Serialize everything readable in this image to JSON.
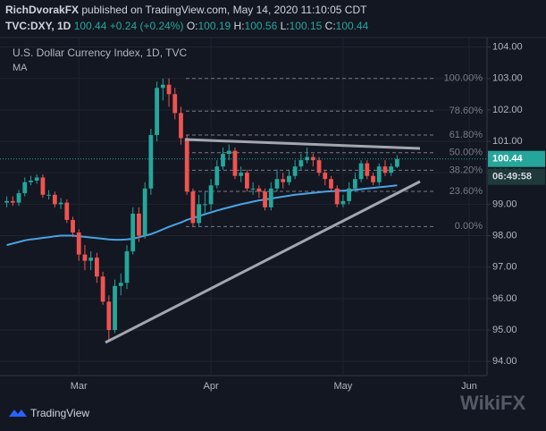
{
  "header": {
    "publisher": "RichDvorakFX",
    "published_text": "published on TradingView.com, May 14, 2020 11:10:05 CDT",
    "symbol": "TVC:DXY, 1D",
    "last": "100.44",
    "change": "+0.24 (+0.24%)",
    "ohlc": [
      {
        "key": "O:",
        "value": "100.19"
      },
      {
        "key": "H:",
        "value": "100.56"
      },
      {
        "key": "L:",
        "value": "100.15"
      },
      {
        "key": "C:",
        "value": "100.44"
      }
    ]
  },
  "chart_data": {
    "type": "candlestick",
    "title": "U.S. Dollar Currency Index, 1D, TVC",
    "categories": [
      null,
      null,
      null,
      null,
      null,
      null,
      null,
      null,
      null,
      null,
      null,
      null,
      "Mar",
      null,
      null,
      null,
      null,
      null,
      null,
      null,
      null,
      null,
      null,
      null,
      null,
      null,
      null,
      null,
      null,
      null,
      null,
      null,
      null,
      null,
      "Apr",
      null,
      null,
      null,
      null,
      null,
      null,
      null,
      null,
      null,
      null,
      null,
      null,
      null,
      null,
      null,
      null,
      null,
      null,
      null,
      null,
      null,
      "May",
      null,
      null,
      null,
      null,
      null,
      null,
      null,
      null,
      null,
      null,
      null,
      null,
      null,
      null,
      null,
      null,
      null,
      null,
      null,
      null,
      "Jun"
    ],
    "open": [
      99.05,
      99.1,
      99.05,
      99.35,
      99.7,
      99.75,
      99.85,
      99.3,
      99.3,
      99.0,
      99.05,
      98.5,
      98.1,
      97.4,
      97.2,
      97.3,
      96.7,
      95.9,
      95.0,
      96.4,
      96.5,
      97.5,
      98.7,
      98.0,
      99.5,
      101.2,
      102.7,
      102.8,
      102.5,
      101.9,
      101.1,
      99.4,
      98.4,
      99.0,
      99.0,
      99.6,
      100.2,
      100.6,
      100.7,
      99.9,
      100.0,
      99.5,
      99.5,
      99.4,
      98.9,
      99.5,
      99.8,
      99.7,
      99.9,
      100.2,
      100.4,
      100.5,
      100.4,
      100.0,
      99.8,
      99.5,
      99.0,
      99.1,
      99.5,
      99.8,
      100.3,
      99.9,
      99.7,
      100.2,
      100.0,
      100.19,
      null,
      null,
      null,
      null,
      null,
      null,
      null,
      null,
      null,
      null,
      null,
      null
    ],
    "high": [
      99.25,
      99.25,
      99.45,
      99.85,
      99.9,
      99.95,
      99.95,
      99.45,
      99.4,
      99.2,
      99.15,
      98.6,
      98.2,
      97.7,
      97.5,
      97.45,
      96.85,
      96.1,
      96.6,
      96.8,
      97.7,
      98.9,
      98.9,
      99.7,
      101.4,
      102.9,
      103.0,
      103.0,
      102.7,
      102.1,
      101.2,
      99.5,
      99.3,
      99.4,
      99.8,
      100.4,
      100.8,
      100.9,
      100.8,
      100.2,
      100.1,
      99.7,
      99.6,
      99.5,
      99.7,
      100.1,
      100.0,
      100.1,
      100.4,
      100.6,
      100.8,
      100.6,
      100.5,
      100.1,
      99.9,
      99.6,
      99.3,
      99.7,
      100.0,
      100.4,
      100.4,
      100.0,
      100.3,
      100.4,
      100.3,
      100.56,
      null,
      null,
      null,
      null,
      null,
      null,
      null,
      null,
      null,
      null,
      null,
      null
    ],
    "low": [
      98.9,
      98.95,
      98.95,
      99.25,
      99.6,
      99.65,
      99.2,
      99.15,
      98.9,
      98.85,
      98.4,
      97.95,
      97.2,
      96.9,
      96.9,
      96.5,
      95.8,
      94.65,
      94.9,
      96.1,
      96.3,
      97.4,
      97.8,
      97.9,
      99.3,
      101.0,
      102.3,
      102.1,
      101.7,
      100.9,
      99.3,
      98.3,
      98.3,
      98.7,
      98.8,
      99.5,
      100.1,
      100.4,
      99.8,
      99.7,
      99.4,
      99.3,
      99.2,
      98.8,
      98.8,
      99.4,
      99.5,
      99.6,
      99.8,
      100.1,
      100.3,
      100.2,
      99.9,
      99.6,
      99.4,
      98.9,
      98.9,
      99.0,
      99.4,
      99.7,
      99.8,
      99.6,
      99.6,
      99.9,
      99.9,
      100.15,
      null,
      null,
      null,
      null,
      null,
      null,
      null,
      null,
      null,
      null,
      null,
      null
    ],
    "close": [
      99.1,
      99.05,
      99.35,
      99.7,
      99.75,
      99.85,
      99.3,
      99.3,
      99.0,
      99.05,
      98.5,
      98.1,
      97.4,
      97.2,
      97.3,
      96.7,
      95.9,
      95.0,
      96.4,
      96.5,
      97.5,
      98.7,
      98.0,
      99.5,
      101.2,
      102.7,
      102.8,
      102.5,
      101.9,
      101.1,
      99.4,
      98.4,
      99.0,
      99.0,
      99.6,
      100.2,
      100.6,
      100.7,
      99.9,
      100.0,
      99.5,
      99.5,
      99.4,
      98.9,
      99.5,
      99.8,
      99.7,
      99.9,
      100.2,
      100.4,
      100.5,
      100.4,
      100.0,
      99.8,
      99.5,
      99.0,
      99.1,
      99.5,
      99.8,
      100.3,
      99.9,
      99.7,
      100.2,
      100.0,
      100.2,
      100.44,
      null,
      null,
      null,
      null,
      null,
      null,
      null,
      null,
      null,
      null,
      null,
      null
    ],
    "up_color": "#26a69a",
    "down_color": "#ef5350",
    "ma": {
      "name": "MA",
      "color": "#4ba3e3",
      "values": [
        97.7,
        97.75,
        97.8,
        97.85,
        97.88,
        97.9,
        97.93,
        97.95,
        97.98,
        98.0,
        98.0,
        98.0,
        97.98,
        97.96,
        97.94,
        97.92,
        97.9,
        97.88,
        97.87,
        97.87,
        97.88,
        97.9,
        97.95,
        98.0,
        98.05,
        98.12,
        98.2,
        98.28,
        98.35,
        98.42,
        98.5,
        98.56,
        98.62,
        98.68,
        98.74,
        98.8,
        98.85,
        98.9,
        98.95,
        99.0,
        99.04,
        99.08,
        99.12,
        99.15,
        99.18,
        99.21,
        99.24,
        99.27,
        99.3,
        99.32,
        99.34,
        99.36,
        99.38,
        99.4,
        99.41,
        99.42,
        99.43,
        99.44,
        99.46,
        99.48,
        99.5,
        99.52,
        99.54,
        99.56,
        99.58,
        99.6,
        null,
        null,
        null,
        null,
        null,
        null,
        null,
        null,
        null,
        null,
        null,
        null
      ]
    },
    "fib_levels": [
      {
        "value": 103.0,
        "label": "100.00%"
      },
      {
        "value": 101.96,
        "label": "78.60%"
      },
      {
        "value": 101.2,
        "label": "61.80%"
      },
      {
        "value": 100.64,
        "label": "50.00%"
      },
      {
        "value": 100.08,
        "label": "38.20%"
      },
      {
        "value": 99.41,
        "label": "23.60%"
      },
      {
        "value": 98.29,
        "label": "0.00%"
      }
    ],
    "ylim": [
      93.55,
      104.3
    ],
    "yticks": [
      {
        "value": 94,
        "label": "94.00"
      },
      {
        "value": 95,
        "label": "95.00"
      },
      {
        "value": 96,
        "label": "96.00"
      },
      {
        "value": 97,
        "label": "97.00"
      },
      {
        "value": 98,
        "label": "98.00"
      },
      {
        "value": 99,
        "label": "99.00"
      },
      {
        "value": 100,
        "label": "100.00"
      },
      {
        "value": 101,
        "label": "101.00"
      },
      {
        "value": 102,
        "label": "102.00"
      },
      {
        "value": 103,
        "label": "103.00"
      },
      {
        "value": 104,
        "label": "104.00"
      }
    ],
    "last_price_label": "100.44",
    "countdown": "06:49:58",
    "grid": true
  },
  "footer": {
    "brand": "TradingView",
    "watermark": "WikiFX"
  }
}
